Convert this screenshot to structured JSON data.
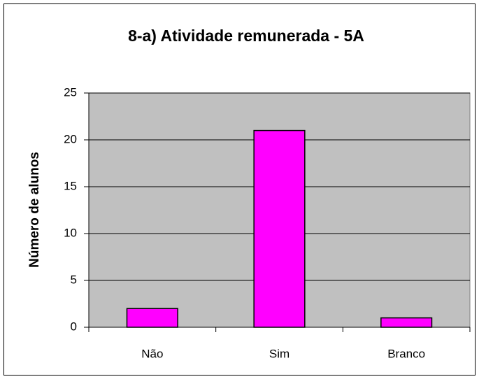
{
  "chart_data": {
    "type": "bar",
    "title": "8-a) Atividade remunerada - 5A",
    "y_label": "Número de alunos",
    "categories": [
      "Não",
      "Sim",
      "Branco"
    ],
    "values": [
      2,
      21,
      1
    ],
    "color": "#ff00ff",
    "ylim": [
      0,
      25
    ],
    "yticks": [
      0,
      5,
      10,
      15,
      20,
      25
    ],
    "grid": true
  }
}
